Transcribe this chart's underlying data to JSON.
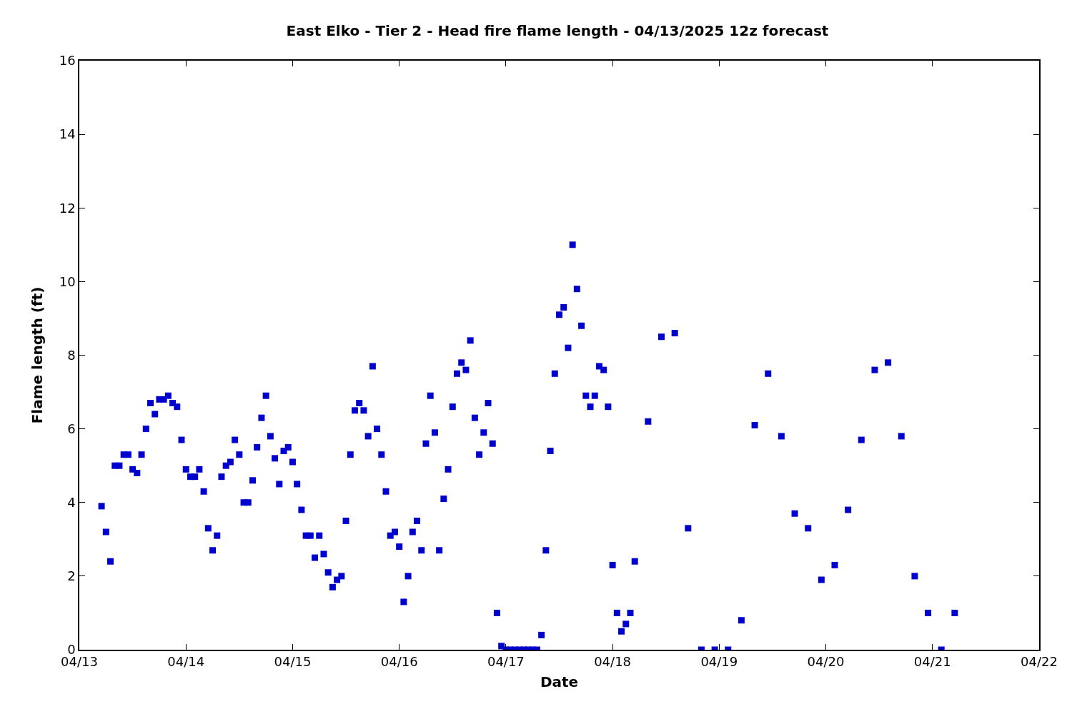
{
  "chart_data": {
    "type": "scatter",
    "title": "East Elko - Tier 2 - Head fire flame length - 04/13/2025 12z forecast",
    "xlabel": "Date",
    "ylabel": "Flame length (ft)",
    "x": [
      "2025-04-13T05:00",
      "2025-04-13T06:00",
      "2025-04-13T07:00",
      "2025-04-13T08:00",
      "2025-04-13T09:00",
      "2025-04-13T10:00",
      "2025-04-13T11:00",
      "2025-04-13T12:00",
      "2025-04-13T13:00",
      "2025-04-13T14:00",
      "2025-04-13T15:00",
      "2025-04-13T16:00",
      "2025-04-13T17:00",
      "2025-04-13T18:00",
      "2025-04-13T19:00",
      "2025-04-13T20:00",
      "2025-04-13T21:00",
      "2025-04-13T22:00",
      "2025-04-13T23:00",
      "2025-04-14T00:00",
      "2025-04-14T01:00",
      "2025-04-14T02:00",
      "2025-04-14T03:00",
      "2025-04-14T04:00",
      "2025-04-14T05:00",
      "2025-04-14T06:00",
      "2025-04-14T07:00",
      "2025-04-14T08:00",
      "2025-04-14T09:00",
      "2025-04-14T10:00",
      "2025-04-14T11:00",
      "2025-04-14T12:00",
      "2025-04-14T13:00",
      "2025-04-14T14:00",
      "2025-04-14T15:00",
      "2025-04-14T16:00",
      "2025-04-14T17:00",
      "2025-04-14T18:00",
      "2025-04-14T19:00",
      "2025-04-14T20:00",
      "2025-04-14T21:00",
      "2025-04-14T22:00",
      "2025-04-14T23:00",
      "2025-04-15T00:00",
      "2025-04-15T01:00",
      "2025-04-15T02:00",
      "2025-04-15T03:00",
      "2025-04-15T04:00",
      "2025-04-15T05:00",
      "2025-04-15T06:00",
      "2025-04-15T07:00",
      "2025-04-15T08:00",
      "2025-04-15T09:00",
      "2025-04-15T10:00",
      "2025-04-15T11:00",
      "2025-04-15T12:00",
      "2025-04-15T13:00",
      "2025-04-15T14:00",
      "2025-04-15T15:00",
      "2025-04-15T16:00",
      "2025-04-15T17:00",
      "2025-04-15T18:00",
      "2025-04-15T19:00",
      "2025-04-15T20:00",
      "2025-04-15T21:00",
      "2025-04-15T22:00",
      "2025-04-15T23:00",
      "2025-04-16T00:00",
      "2025-04-16T01:00",
      "2025-04-16T02:00",
      "2025-04-16T03:00",
      "2025-04-16T04:00",
      "2025-04-16T05:00",
      "2025-04-16T06:00",
      "2025-04-16T07:00",
      "2025-04-16T08:00",
      "2025-04-16T09:00",
      "2025-04-16T10:00",
      "2025-04-16T11:00",
      "2025-04-16T12:00",
      "2025-04-16T13:00",
      "2025-04-16T14:00",
      "2025-04-16T15:00",
      "2025-04-16T16:00",
      "2025-04-16T17:00",
      "2025-04-16T18:00",
      "2025-04-16T19:00",
      "2025-04-16T20:00",
      "2025-04-16T21:00",
      "2025-04-16T22:00",
      "2025-04-16T23:00",
      "2025-04-17T00:00",
      "2025-04-17T01:00",
      "2025-04-17T02:00",
      "2025-04-17T03:00",
      "2025-04-17T04:00",
      "2025-04-17T05:00",
      "2025-04-17T06:00",
      "2025-04-17T07:00",
      "2025-04-17T08:00",
      "2025-04-17T09:00",
      "2025-04-17T10:00",
      "2025-04-17T11:00",
      "2025-04-17T12:00",
      "2025-04-17T13:00",
      "2025-04-17T14:00",
      "2025-04-17T15:00",
      "2025-04-17T16:00",
      "2025-04-17T17:00",
      "2025-04-17T18:00",
      "2025-04-17T19:00",
      "2025-04-17T20:00",
      "2025-04-17T21:00",
      "2025-04-17T22:00",
      "2025-04-17T23:00",
      "2025-04-18T00:00",
      "2025-04-18T01:00",
      "2025-04-18T02:00",
      "2025-04-18T03:00",
      "2025-04-18T04:00",
      "2025-04-18T05:00",
      "2025-04-18T08:00",
      "2025-04-18T11:00",
      "2025-04-18T14:00",
      "2025-04-18T17:00",
      "2025-04-18T20:00",
      "2025-04-18T23:00",
      "2025-04-19T02:00",
      "2025-04-19T05:00",
      "2025-04-19T08:00",
      "2025-04-19T11:00",
      "2025-04-19T14:00",
      "2025-04-19T17:00",
      "2025-04-19T20:00",
      "2025-04-19T23:00",
      "2025-04-20T02:00",
      "2025-04-20T05:00",
      "2025-04-20T08:00",
      "2025-04-20T11:00",
      "2025-04-20T14:00",
      "2025-04-20T17:00",
      "2025-04-20T20:00",
      "2025-04-20T23:00",
      "2025-04-21T02:00",
      "2025-04-21T05:00"
    ],
    "values": [
      3.9,
      3.2,
      2.4,
      5.0,
      5.0,
      5.3,
      5.3,
      4.9,
      4.8,
      5.3,
      6.0,
      6.7,
      6.4,
      6.8,
      6.8,
      6.9,
      6.7,
      6.6,
      5.7,
      4.9,
      4.7,
      4.7,
      4.9,
      4.3,
      3.3,
      2.7,
      3.1,
      4.7,
      5.0,
      5.1,
      5.7,
      5.3,
      4.0,
      4.0,
      4.6,
      5.5,
      6.3,
      6.9,
      5.8,
      5.2,
      4.5,
      5.4,
      5.5,
      5.1,
      4.5,
      3.8,
      3.1,
      3.1,
      2.5,
      3.1,
      2.6,
      2.1,
      1.7,
      1.9,
      2.0,
      3.5,
      5.3,
      6.5,
      6.7,
      6.5,
      5.8,
      7.7,
      6.0,
      5.3,
      4.3,
      3.1,
      3.2,
      2.8,
      1.3,
      2.0,
      3.2,
      3.5,
      2.7,
      5.6,
      6.9,
      5.9,
      2.7,
      4.1,
      4.9,
      6.6,
      7.5,
      7.8,
      7.6,
      8.4,
      6.3,
      5.3,
      5.9,
      6.7,
      5.6,
      1.0,
      0.1,
      0,
      0,
      0,
      0,
      0,
      0,
      0,
      0,
      0.4,
      2.7,
      5.4,
      7.5,
      9.1,
      9.3,
      8.2,
      11.0,
      9.8,
      8.8,
      6.9,
      6.6,
      6.9,
      7.7,
      7.6,
      6.6,
      2.3,
      1.0,
      0.5,
      0.7,
      1.0,
      2.4,
      6.2,
      8.5,
      8.6,
      3.3,
      0,
      0,
      0,
      0.8,
      6.1,
      7.5,
      5.8,
      3.7,
      3.3,
      1.9,
      2.3,
      3.8,
      5.7,
      7.6,
      7.8,
      5.8,
      2.0,
      1.0,
      0,
      1.0
    ],
    "color": "#0000cc",
    "marker": "square",
    "xlim": [
      "2025-04-13",
      "2025-04-22"
    ],
    "xticks": [
      {
        "value": "2025-04-13",
        "label": "04/13"
      },
      {
        "value": "2025-04-14",
        "label": "04/14"
      },
      {
        "value": "2025-04-15",
        "label": "04/15"
      },
      {
        "value": "2025-04-16",
        "label": "04/16"
      },
      {
        "value": "2025-04-17",
        "label": "04/17"
      },
      {
        "value": "2025-04-18",
        "label": "04/18"
      },
      {
        "value": "2025-04-19",
        "label": "04/19"
      },
      {
        "value": "2025-04-20",
        "label": "04/20"
      },
      {
        "value": "2025-04-21",
        "label": "04/21"
      },
      {
        "value": "2025-04-22",
        "label": "04/22"
      }
    ],
    "ylim": [
      0,
      16
    ],
    "yticks": [
      0,
      2,
      4,
      6,
      8,
      10,
      12,
      14,
      16
    ]
  }
}
